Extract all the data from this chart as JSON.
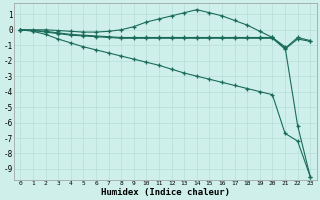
{
  "xlabel": "Humidex (Indice chaleur)",
  "background_color": "#cff0ea",
  "grid_color": "#b8ddd7",
  "line_color": "#1a6b5a",
  "xlim": [
    -0.5,
    23.5
  ],
  "ylim": [
    -9.7,
    1.7
  ],
  "yticks": [
    1,
    0,
    -1,
    -2,
    -3,
    -4,
    -5,
    -6,
    -7,
    -8,
    -9
  ],
  "xticks": [
    0,
    1,
    2,
    3,
    4,
    5,
    6,
    7,
    8,
    9,
    10,
    11,
    12,
    13,
    14,
    15,
    16,
    17,
    18,
    19,
    20,
    21,
    22,
    23
  ],
  "series": [
    {
      "x": [
        0,
        1,
        2,
        3,
        4,
        5,
        6,
        7,
        8,
        9,
        10,
        11,
        12,
        13,
        14,
        15,
        16,
        17,
        18,
        19,
        20,
        21,
        22,
        23
      ],
      "y": [
        0,
        -0.05,
        -0.1,
        -0.2,
        -0.3,
        -0.35,
        -0.4,
        -0.45,
        -0.5,
        -0.5,
        -0.5,
        -0.5,
        -0.5,
        -0.5,
        -0.5,
        -0.5,
        -0.5,
        -0.5,
        -0.5,
        -0.5,
        -0.5,
        -1.2,
        -0.5,
        -0.7
      ]
    },
    {
      "x": [
        0,
        1,
        2,
        3,
        4,
        5,
        6,
        7,
        8,
        9,
        10,
        11,
        12,
        13,
        14,
        15,
        16,
        17,
        18,
        19,
        20,
        21,
        22,
        23
      ],
      "y": [
        0,
        -0.05,
        -0.15,
        -0.25,
        -0.35,
        -0.4,
        -0.45,
        -0.5,
        -0.55,
        -0.55,
        -0.55,
        -0.55,
        -0.55,
        -0.55,
        -0.55,
        -0.55,
        -0.55,
        -0.55,
        -0.55,
        -0.55,
        -0.55,
        -1.25,
        -0.6,
        -0.75
      ]
    },
    {
      "x": [
        0,
        1,
        2,
        3,
        4,
        5,
        6,
        7,
        8,
        9,
        10,
        11,
        12,
        13,
        14,
        15,
        16,
        17,
        18,
        19,
        20,
        21,
        22,
        23
      ],
      "y": [
        0.0,
        0.0,
        0.0,
        -0.05,
        -0.1,
        -0.15,
        -0.15,
        -0.1,
        0.0,
        0.2,
        0.5,
        0.7,
        0.9,
        1.1,
        1.3,
        1.1,
        0.9,
        0.6,
        0.3,
        -0.1,
        -0.5,
        -1.1,
        -6.2,
        -9.5
      ]
    },
    {
      "x": [
        0,
        1,
        2,
        3,
        4,
        5,
        6,
        7,
        8,
        9,
        10,
        11,
        12,
        13,
        14,
        15,
        16,
        17,
        18,
        19,
        20,
        21,
        22,
        23
      ],
      "y": [
        0,
        -0.1,
        -0.3,
        -0.6,
        -0.85,
        -1.1,
        -1.3,
        -1.5,
        -1.7,
        -1.9,
        -2.1,
        -2.3,
        -2.55,
        -2.8,
        -3.0,
        -3.2,
        -3.4,
        -3.6,
        -3.8,
        -4.0,
        -4.2,
        -6.7,
        -7.2,
        -9.5
      ]
    }
  ]
}
